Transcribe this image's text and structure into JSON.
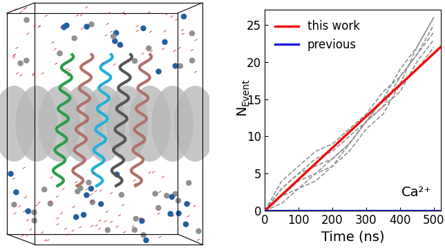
{
  "chart_data": {
    "type": "line",
    "xlabel": "Time (ns)",
    "ylabel": "NEvent",
    "ylabel_main": "N",
    "ylabel_subscript": "Event",
    "annotation": "Ca²⁺",
    "xlim": [
      0,
      520
    ],
    "ylim": [
      0,
      27
    ],
    "xticks": [
      0,
      100,
      200,
      300,
      400,
      500
    ],
    "yticks": [
      0,
      5,
      10,
      15,
      20,
      25
    ],
    "grid": false,
    "legend": "upper left",
    "series": [
      {
        "color": "#909090",
        "line_style": "dashed",
        "x": [
          0,
          50,
          100,
          150,
          200,
          250,
          300,
          350,
          400,
          450,
          500
        ],
        "values": [
          0,
          4,
          6,
          8,
          9,
          11,
          13,
          16,
          18,
          21,
          24
        ]
      },
      {
        "color": "#909090",
        "line_style": "dashed",
        "x": [
          0,
          50,
          100,
          150,
          200,
          250,
          300,
          350,
          400,
          450,
          500
        ],
        "values": [
          0,
          2,
          4,
          5,
          7,
          9,
          12,
          14,
          16,
          20,
          23
        ]
      },
      {
        "color": "#909090",
        "line_style": "dashed",
        "x": [
          0,
          50,
          100,
          150,
          200,
          250,
          300,
          350,
          400,
          450,
          500
        ],
        "values": [
          0,
          3,
          5,
          6,
          7,
          9,
          12,
          15,
          17,
          19,
          22
        ]
      },
      {
        "color": "#909090",
        "line_style": "dashed",
        "x": [
          0,
          50,
          100,
          150,
          200,
          250,
          300,
          350,
          400,
          450,
          500
        ],
        "values": [
          0,
          2,
          3,
          5,
          6,
          8,
          11,
          13,
          17,
          22,
          26
        ]
      },
      {
        "color": "#909090",
        "line_style": "dashed",
        "x": [
          0,
          50,
          100,
          150,
          200,
          250,
          300,
          350,
          400,
          450,
          500
        ],
        "values": [
          0,
          1,
          3,
          4,
          6,
          9,
          12,
          14,
          18,
          21,
          25
        ]
      },
      {
        "color": "#909090",
        "line_style": "dashed",
        "x": [
          0,
          50,
          100,
          150,
          200,
          250,
          300,
          350,
          400,
          450,
          500
        ],
        "values": [
          0,
          3,
          5,
          7,
          8,
          10,
          12,
          15,
          19,
          22,
          26
        ]
      },
      {
        "name": "this work",
        "color": "#ee1111",
        "line_style": "solid",
        "x": [
          0,
          520
        ],
        "values": [
          0,
          22
        ]
      },
      {
        "name": "previous",
        "color": "#1f1fdd",
        "line_style": "solid",
        "x": [
          0,
          520
        ],
        "values": [
          0,
          0
        ]
      }
    ]
  }
}
